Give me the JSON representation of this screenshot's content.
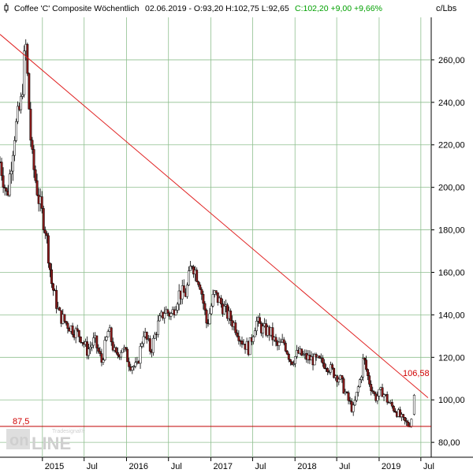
{
  "header": {
    "icon": "chart-handle-icon",
    "title": "Coffee 'C' Composite Wöchentlich",
    "stats_dark": "02.06.2019 - O:93,20 H:102,75 L:92,65",
    "stats_green": "C:102,20 +9,00 +9,66%",
    "unit": "c/Lbs"
  },
  "watermark": {
    "brand": "onLINE",
    "sub": "Tradesignal®"
  },
  "colors": {
    "background": "#ffffff",
    "grid": "#8fbf8f",
    "trendline": "#e02020",
    "support": "#c00000",
    "up_candle": "#ffffff",
    "down_candle": "#8b1a1a",
    "green_text": "#00a000",
    "red_text": "#d00000"
  },
  "chart_data": {
    "type": "candlestick",
    "title": "Coffee 'C' Composite Wöchentlich",
    "ylabel": "c/Lbs",
    "ylim": [
      73,
      280
    ],
    "yticks": [
      80,
      100,
      120,
      140,
      160,
      180,
      200,
      220,
      240,
      260
    ],
    "ytick_labels": [
      "80,00",
      "100,00",
      "120,00",
      "140,00",
      "160,00",
      "180,00",
      "200,00",
      "220,00",
      "240,00",
      "260,00"
    ],
    "xlim": [
      "2014-07-01",
      "2019-08-15"
    ],
    "xticks": [
      {
        "date": "2015-01-01",
        "label": "2015"
      },
      {
        "date": "2015-07-01",
        "label": "Jul"
      },
      {
        "date": "2016-01-01",
        "label": "2016"
      },
      {
        "date": "2016-07-01",
        "label": "Jul"
      },
      {
        "date": "2017-01-01",
        "label": "2017"
      },
      {
        "date": "2017-07-01",
        "label": "Jul"
      },
      {
        "date": "2018-01-01",
        "label": "2018"
      },
      {
        "date": "2018-07-01",
        "label": "Jul"
      },
      {
        "date": "2019-01-01",
        "label": "2019"
      },
      {
        "date": "2019-07-01",
        "label": "Jul"
      }
    ],
    "grid": true,
    "last_bar": {
      "date": "2019-06-02",
      "open": 93.2,
      "high": 102.75,
      "low": 92.65,
      "close": 102.2,
      "change": 9.0,
      "change_pct": 9.66
    },
    "price_path": [
      [
        "2014-07-01",
        212
      ],
      [
        "2014-08-01",
        195
      ],
      [
        "2014-09-01",
        225
      ],
      [
        "2014-10-01",
        240
      ],
      [
        "2014-10-20",
        268
      ],
      [
        "2014-11-15",
        215
      ],
      [
        "2014-12-15",
        195
      ],
      [
        "2015-01-15",
        180
      ],
      [
        "2015-02-10",
        155
      ],
      [
        "2015-03-15",
        140
      ],
      [
        "2015-04-15",
        136
      ],
      [
        "2015-05-15",
        133
      ],
      [
        "2015-06-15",
        130
      ],
      [
        "2015-07-15",
        123
      ],
      [
        "2015-08-15",
        128
      ],
      [
        "2015-09-15",
        118
      ],
      [
        "2015-10-15",
        133
      ],
      [
        "2015-11-15",
        120
      ],
      [
        "2015-12-15",
        125
      ],
      [
        "2016-01-15",
        117
      ],
      [
        "2016-02-15",
        115
      ],
      [
        "2016-03-15",
        132
      ],
      [
        "2016-04-15",
        123
      ],
      [
        "2016-05-15",
        135
      ],
      [
        "2016-06-15",
        142
      ],
      [
        "2016-07-15",
        140
      ],
      [
        "2016-08-15",
        150
      ],
      [
        "2016-09-15",
        150
      ],
      [
        "2016-10-10",
        165
      ],
      [
        "2016-11-15",
        155
      ],
      [
        "2016-12-15",
        135
      ],
      [
        "2017-01-15",
        150
      ],
      [
        "2017-02-15",
        145
      ],
      [
        "2017-03-15",
        140
      ],
      [
        "2017-04-15",
        135
      ],
      [
        "2017-05-15",
        128
      ],
      [
        "2017-06-15",
        124
      ],
      [
        "2017-07-15",
        137
      ],
      [
        "2017-08-15",
        133
      ],
      [
        "2017-09-15",
        132
      ],
      [
        "2017-10-15",
        125
      ],
      [
        "2017-11-15",
        127
      ],
      [
        "2017-12-15",
        118
      ],
      [
        "2018-01-15",
        122
      ],
      [
        "2018-02-15",
        120
      ],
      [
        "2018-03-15",
        119
      ],
      [
        "2018-04-15",
        118
      ],
      [
        "2018-05-15",
        117
      ],
      [
        "2018-06-15",
        113
      ],
      [
        "2018-07-15",
        110
      ],
      [
        "2018-08-15",
        101
      ],
      [
        "2018-09-10",
        95
      ],
      [
        "2018-10-15",
        112
      ],
      [
        "2018-10-25",
        120
      ],
      [
        "2018-11-15",
        110
      ],
      [
        "2018-12-15",
        101
      ],
      [
        "2019-01-15",
        104
      ],
      [
        "2019-02-15",
        98
      ],
      [
        "2019-03-15",
        95
      ],
      [
        "2019-04-15",
        90
      ],
      [
        "2019-05-10",
        88
      ],
      [
        "2019-05-26",
        93.2
      ],
      [
        "2019-06-02",
        102.2
      ]
    ],
    "annotations": [
      {
        "kind": "trendline",
        "from": [
          "2014-07-01",
          272
        ],
        "to": [
          "2019-08-01",
          101
        ],
        "label": "106,58"
      },
      {
        "kind": "hline",
        "y": 87.5,
        "label": "87,5"
      }
    ]
  }
}
